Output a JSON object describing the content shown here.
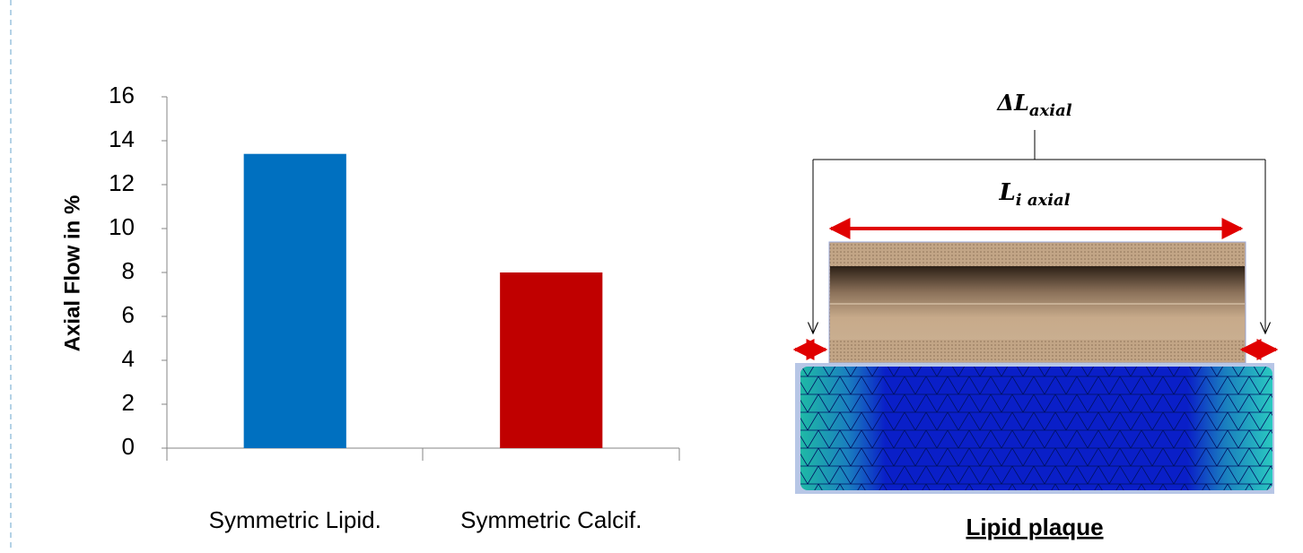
{
  "chart_data": {
    "type": "bar",
    "ylabel": "Axial Flow in %",
    "categories": [
      "Symmetric Lipid.",
      "Symmetric Calcif."
    ],
    "values": [
      13.4,
      8.0
    ],
    "colors": [
      "#0070c0",
      "#c00000"
    ],
    "ylim": [
      0,
      16
    ],
    "yticks": [
      0,
      2,
      4,
      6,
      8,
      10,
      12,
      14,
      16
    ],
    "grid": false
  },
  "diagram": {
    "delta_main": "ΔL",
    "delta_sub": "axial",
    "length_main": "L",
    "length_sub": "i axial",
    "caption": "Lipid plaque"
  }
}
